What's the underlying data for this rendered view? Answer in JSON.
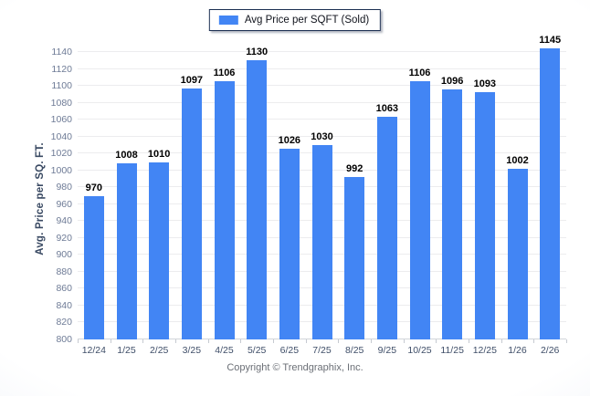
{
  "chart_data": {
    "type": "bar",
    "title": "",
    "categories": [
      "12/24",
      "1/25",
      "2/25",
      "3/25",
      "4/25",
      "5/25",
      "6/25",
      "7/25",
      "8/25",
      "9/25",
      "10/25",
      "11/25",
      "12/25",
      "1/26",
      "2/26"
    ],
    "values": [
      970,
      1008,
      1010,
      1097,
      1106,
      1130,
      1026,
      1030,
      992,
      1063,
      1106,
      1096,
      1093,
      1002,
      1145
    ],
    "series_name": "Avg Price per SQFT (Sold)",
    "xlabel": "",
    "ylabel": "Avg. Price per SQ. FT.",
    "y_min": 800,
    "y_max": 1140,
    "y_step": 20,
    "grid": true,
    "legend_position": "top",
    "data_labels": true
  },
  "legend": {
    "label": "Avg Price per SQFT (Sold)",
    "swatch_color": "#4285f4"
  },
  "footer": {
    "text": "Copyright © Trendgraphix, Inc."
  },
  "colors": {
    "bar": "#4285f4",
    "gridline": "#ececee",
    "y_tick_label": "#6e7b96",
    "x_tick_label": "#3f4e68",
    "axis_title": "#3a4a63",
    "legend_border": "#1c2f52",
    "footer_text": "#6b6f76"
  }
}
